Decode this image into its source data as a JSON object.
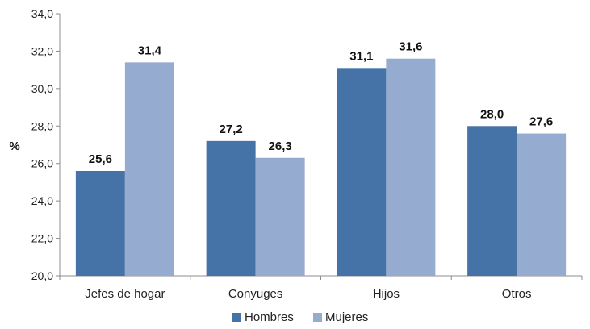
{
  "chart_data": {
    "type": "bar",
    "ylabel": "%",
    "ylim": [
      20,
      34
    ],
    "ytick_step": 2,
    "ytick_labels": [
      "20,0",
      "22,0",
      "24,0",
      "26,0",
      "28,0",
      "30,0",
      "32,0",
      "34,0"
    ],
    "categories": [
      "Jefes de hogar",
      "Conyuges",
      "Hijos",
      "Otros"
    ],
    "series": [
      {
        "name": "Hombres",
        "color": "#4572a7",
        "values": [
          25.6,
          27.2,
          31.1,
          28.0
        ],
        "labels": [
          "25,6",
          "27,2",
          "31,1",
          "28,0"
        ]
      },
      {
        "name": "Mujeres",
        "color": "#96abd0",
        "values": [
          31.4,
          26.3,
          31.6,
          27.6
        ],
        "labels": [
          "31,4",
          "26,3",
          "31,6",
          "27,6"
        ]
      }
    ],
    "legend_position": "bottom",
    "grid": false
  }
}
